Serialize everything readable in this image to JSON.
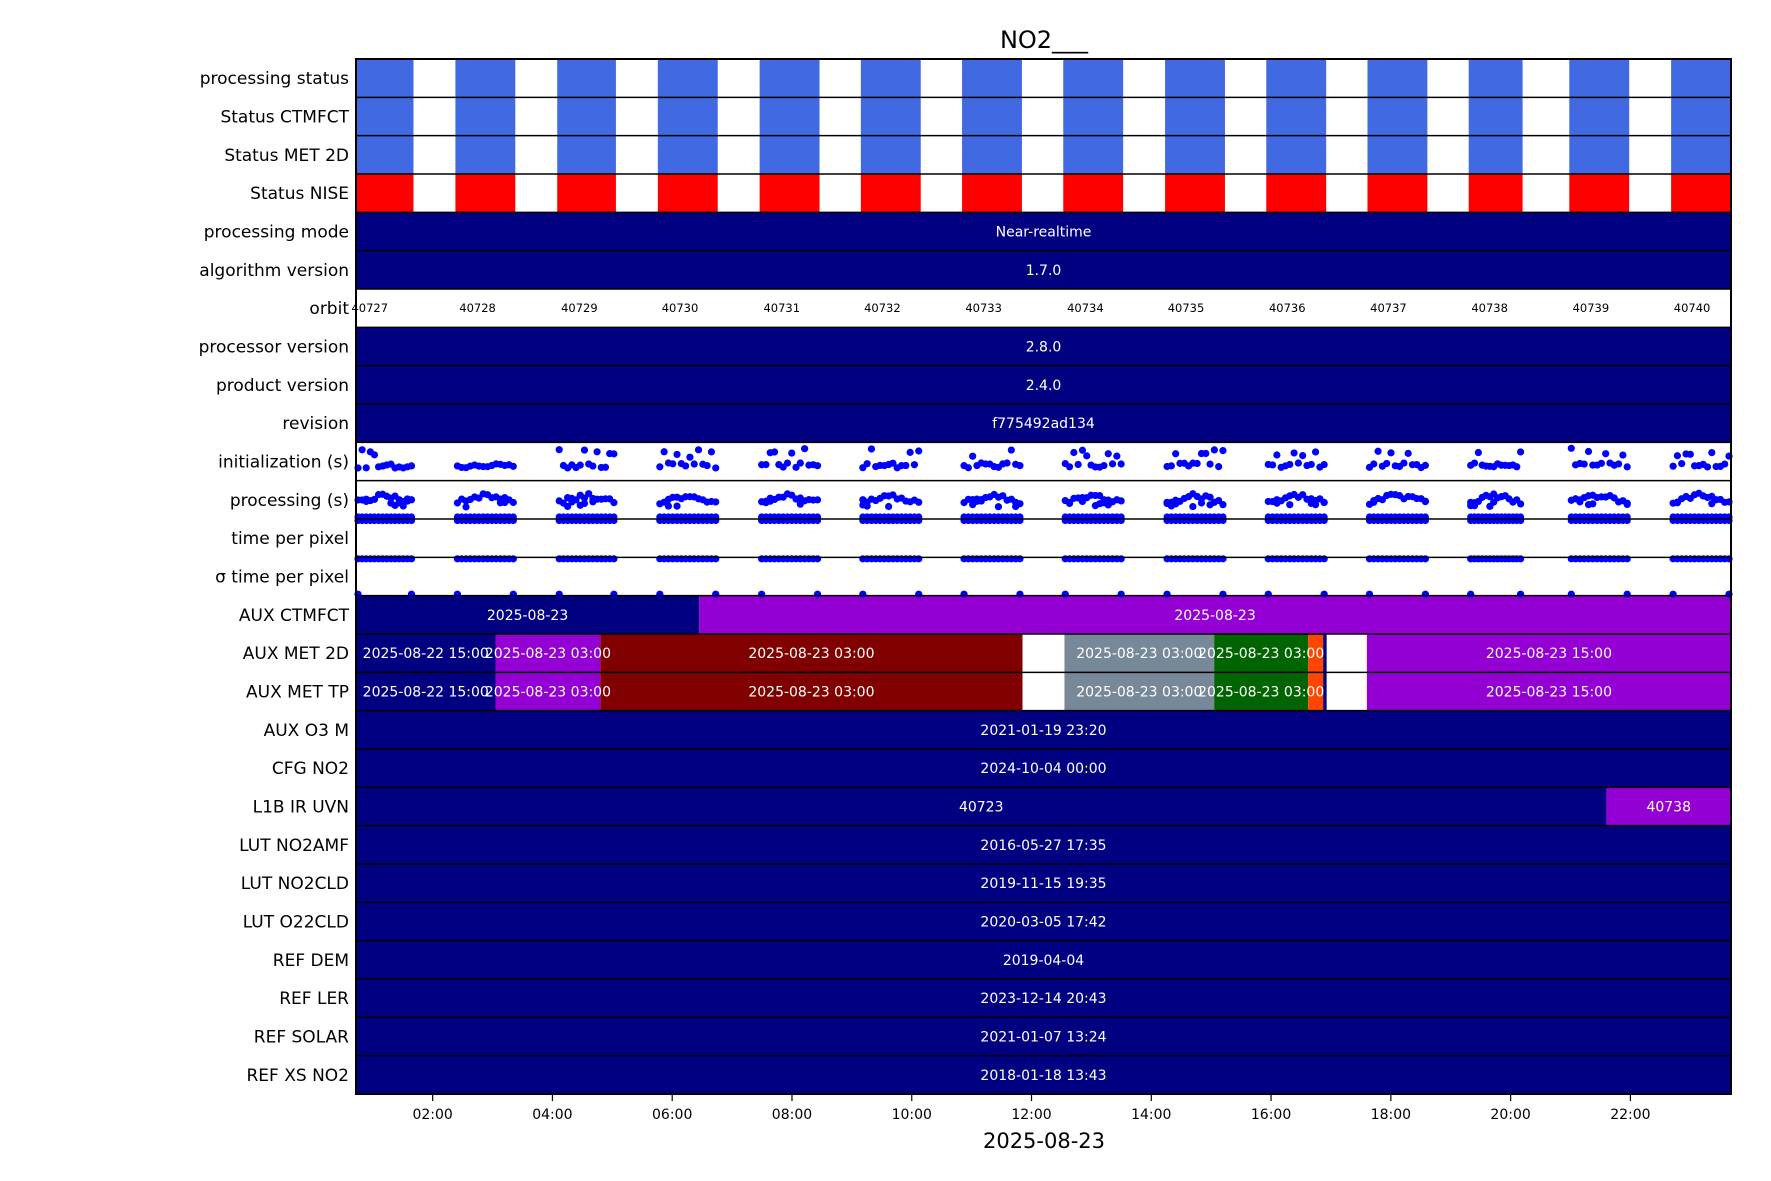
{
  "chart_data": {
    "type": "timeline",
    "title": "NO2___",
    "xlabel": "2025-08-23",
    "x_ticks": [
      "02:00",
      "04:00",
      "06:00",
      "08:00",
      "10:00",
      "12:00",
      "14:00",
      "16:00",
      "18:00",
      "20:00",
      "22:00"
    ],
    "x_tick_hours": [
      2,
      4,
      6,
      8,
      10,
      12,
      14,
      16,
      18,
      20,
      22
    ],
    "xlim_hours": [
      0.72,
      23.68
    ],
    "colors": {
      "blue": "#4169e1",
      "red": "#ff0000",
      "navy": "#000080",
      "purple": "#9400d3",
      "maroon": "#800000",
      "gray": "#778899",
      "green": "#006400",
      "orange": "#ff4500",
      "white": "#ffffff",
      "dots": "#0000ff"
    },
    "orbit_windows": [
      [
        0.72,
        1.68
      ],
      [
        2.38,
        3.38
      ],
      [
        4.08,
        5.06
      ],
      [
        5.76,
        6.76
      ],
      [
        7.46,
        8.46
      ],
      [
        9.15,
        10.15
      ],
      [
        10.84,
        11.84
      ],
      [
        12.53,
        13.53
      ],
      [
        14.23,
        15.23
      ],
      [
        15.92,
        16.92
      ],
      [
        17.61,
        18.61
      ],
      [
        19.3,
        20.2
      ],
      [
        20.98,
        21.98
      ],
      [
        22.68,
        23.68
      ]
    ],
    "orbits": [
      {
        "label": "40727",
        "center": 0.95
      },
      {
        "label": "40728",
        "center": 2.75
      },
      {
        "label": "40729",
        "center": 4.45
      },
      {
        "label": "40730",
        "center": 6.13
      },
      {
        "label": "40731",
        "center": 7.83
      },
      {
        "label": "40732",
        "center": 9.51
      },
      {
        "label": "40733",
        "center": 11.2
      },
      {
        "label": "40734",
        "center": 12.9
      },
      {
        "label": "40735",
        "center": 14.58
      },
      {
        "label": "40736",
        "center": 16.27
      },
      {
        "label": "40737",
        "center": 17.96
      },
      {
        "label": "40738",
        "center": 19.65
      },
      {
        "label": "40739",
        "center": 21.34
      },
      {
        "label": "40740",
        "center": 23.03
      }
    ],
    "rows": [
      {
        "label": "processing status",
        "kind": "status",
        "color": "blue"
      },
      {
        "label": "Status CTMFCT",
        "kind": "status",
        "color": "blue"
      },
      {
        "label": "Status MET 2D",
        "kind": "status",
        "color": "blue"
      },
      {
        "label": "Status NISE",
        "kind": "status",
        "color": "red"
      },
      {
        "label": "processing mode",
        "kind": "bars",
        "bars": [
          {
            "start": 0.72,
            "end": 23.68,
            "color": "navy",
            "label": "Near-realtime"
          }
        ]
      },
      {
        "label": "algorithm version",
        "kind": "bars",
        "bars": [
          {
            "start": 0.72,
            "end": 23.68,
            "color": "navy",
            "label": "1.7.0"
          }
        ]
      },
      {
        "label": "orbit",
        "kind": "orbit"
      },
      {
        "label": "processor version",
        "kind": "bars",
        "bars": [
          {
            "start": 0.72,
            "end": 23.68,
            "color": "navy",
            "label": "2.8.0"
          }
        ]
      },
      {
        "label": "product version",
        "kind": "bars",
        "bars": [
          {
            "start": 0.72,
            "end": 23.68,
            "color": "navy",
            "label": "2.4.0"
          }
        ]
      },
      {
        "label": "revision",
        "kind": "bars",
        "bars": [
          {
            "start": 0.72,
            "end": 23.68,
            "color": "navy",
            "label": "f775492ad134"
          }
        ]
      },
      {
        "label": "initialization (s)",
        "kind": "scatter",
        "pattern": "init"
      },
      {
        "label": "processing (s)",
        "kind": "scatter",
        "pattern": "proc"
      },
      {
        "label": "time per pixel",
        "kind": "scatter",
        "pattern": "tpp"
      },
      {
        "label": "σ time per pixel",
        "kind": "scatter",
        "pattern": "sigma"
      },
      {
        "label": "AUX CTMFCT",
        "kind": "bars",
        "bars": [
          {
            "start": 0.72,
            "end": 6.45,
            "color": "navy",
            "label": "2025-08-23"
          },
          {
            "start": 6.45,
            "end": 23.68,
            "color": "purple",
            "label": "2025-08-23"
          }
        ]
      },
      {
        "label": "AUX MET 2D",
        "kind": "bars",
        "bars": [
          {
            "start": 0.72,
            "end": 3.05,
            "color": "navy",
            "label": "2025-08-22 15:00"
          },
          {
            "start": 3.05,
            "end": 4.8,
            "color": "purple",
            "label": "2025-08-23 03:00"
          },
          {
            "start": 4.8,
            "end": 11.85,
            "color": "maroon",
            "label": "2025-08-23 03:00"
          },
          {
            "start": 11.85,
            "end": 12.55,
            "color": "white",
            "label": ""
          },
          {
            "start": 12.55,
            "end": 15.05,
            "color": "gray",
            "label": "2025-08-23 03:00"
          },
          {
            "start": 15.05,
            "end": 16.62,
            "color": "green",
            "label": "2025-08-23 03:00"
          },
          {
            "start": 16.62,
            "end": 16.87,
            "color": "orange",
            "label": ""
          },
          {
            "start": 16.87,
            "end": 16.93,
            "color": "navy",
            "label": ""
          },
          {
            "start": 16.93,
            "end": 17.6,
            "color": "white",
            "label": ""
          },
          {
            "start": 17.6,
            "end": 23.68,
            "color": "purple",
            "label": "2025-08-23 15:00"
          }
        ]
      },
      {
        "label": "AUX MET TP",
        "kind": "bars",
        "bars": [
          {
            "start": 0.72,
            "end": 3.05,
            "color": "navy",
            "label": "2025-08-22 15:00"
          },
          {
            "start": 3.05,
            "end": 4.8,
            "color": "purple",
            "label": "2025-08-23 03:00"
          },
          {
            "start": 4.8,
            "end": 11.85,
            "color": "maroon",
            "label": "2025-08-23 03:00"
          },
          {
            "start": 11.85,
            "end": 12.55,
            "color": "white",
            "label": ""
          },
          {
            "start": 12.55,
            "end": 15.05,
            "color": "gray",
            "label": "2025-08-23 03:00"
          },
          {
            "start": 15.05,
            "end": 16.62,
            "color": "green",
            "label": "2025-08-23 03:00"
          },
          {
            "start": 16.62,
            "end": 16.87,
            "color": "orange",
            "label": ""
          },
          {
            "start": 16.87,
            "end": 16.93,
            "color": "navy",
            "label": ""
          },
          {
            "start": 16.93,
            "end": 17.6,
            "color": "white",
            "label": ""
          },
          {
            "start": 17.6,
            "end": 23.68,
            "color": "purple",
            "label": "2025-08-23 15:00"
          }
        ]
      },
      {
        "label": "AUX O3   M",
        "kind": "bars",
        "bars": [
          {
            "start": 0.72,
            "end": 23.68,
            "color": "navy",
            "label": "2021-01-19 23:20"
          }
        ]
      },
      {
        "label": "CFG NO2",
        "kind": "bars",
        "bars": [
          {
            "start": 0.72,
            "end": 23.68,
            "color": "navy",
            "label": "2024-10-04 00:00"
          }
        ]
      },
      {
        "label": "L1B IR UVN",
        "kind": "bars",
        "bars": [
          {
            "start": 0.72,
            "end": 21.6,
            "color": "navy",
            "label": "40723"
          },
          {
            "start": 21.6,
            "end": 23.68,
            "color": "purple",
            "label": "40738"
          }
        ]
      },
      {
        "label": "LUT NO2AMF",
        "kind": "bars",
        "bars": [
          {
            "start": 0.72,
            "end": 23.68,
            "color": "navy",
            "label": "2016-05-27 17:35"
          }
        ]
      },
      {
        "label": "LUT NO2CLD",
        "kind": "bars",
        "bars": [
          {
            "start": 0.72,
            "end": 23.68,
            "color": "navy",
            "label": "2019-11-15 19:35"
          }
        ]
      },
      {
        "label": "LUT O22CLD",
        "kind": "bars",
        "bars": [
          {
            "start": 0.72,
            "end": 23.68,
            "color": "navy",
            "label": "2020-03-05 17:42"
          }
        ]
      },
      {
        "label": "REF DEM",
        "kind": "bars",
        "bars": [
          {
            "start": 0.72,
            "end": 23.68,
            "color": "navy",
            "label": "2019-04-04"
          }
        ]
      },
      {
        "label": "REF LER",
        "kind": "bars",
        "bars": [
          {
            "start": 0.72,
            "end": 23.68,
            "color": "navy",
            "label": "2023-12-14 20:43"
          }
        ]
      },
      {
        "label": "REF SOLAR",
        "kind": "bars",
        "bars": [
          {
            "start": 0.72,
            "end": 23.68,
            "color": "navy",
            "label": "2021-01-07 13:24"
          }
        ]
      },
      {
        "label": "REF XS NO2",
        "kind": "bars",
        "bars": [
          {
            "start": 0.72,
            "end": 23.68,
            "color": "navy",
            "label": "2018-01-18 13:43"
          }
        ]
      }
    ]
  }
}
